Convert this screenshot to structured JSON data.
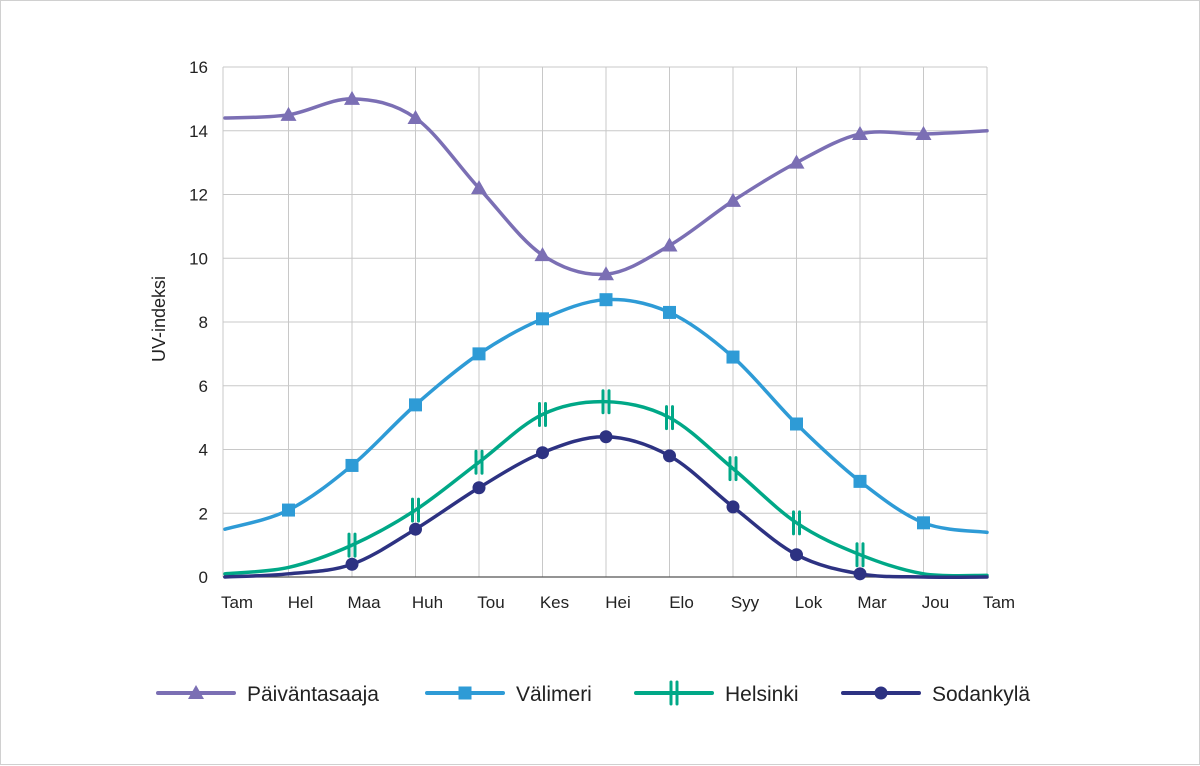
{
  "chart_data": {
    "type": "line",
    "title": "",
    "xlabel": "",
    "ylabel": "UV-indeksi",
    "categories": [
      "Tam",
      "Hel",
      "Maa",
      "Huh",
      "Tou",
      "Kes",
      "Hei",
      "Elo",
      "Syy",
      "Lok",
      "Mar",
      "Jou",
      "Tam"
    ],
    "ylim": [
      0,
      16
    ],
    "yticks": [
      0,
      2,
      4,
      6,
      8,
      10,
      12,
      14,
      16
    ],
    "grid": true,
    "legend_position": "bottom",
    "series": [
      {
        "name": "Päiväntasaaja",
        "color": "#7b6fb4",
        "marker": "triangle",
        "marker_indices": [
          1,
          2,
          3,
          4,
          5,
          6,
          7,
          8,
          9,
          10,
          11
        ],
        "values": [
          14.4,
          14.5,
          15.0,
          14.4,
          12.2,
          10.1,
          9.5,
          10.4,
          11.8,
          13.0,
          13.9,
          13.9,
          14.0
        ]
      },
      {
        "name": "Välimeri",
        "color": "#2e9bd6",
        "marker": "square",
        "marker_indices": [
          1,
          2,
          3,
          4,
          5,
          6,
          7,
          8,
          9,
          10,
          11
        ],
        "values": [
          1.5,
          2.1,
          3.5,
          5.4,
          7.0,
          8.1,
          8.7,
          8.3,
          6.9,
          4.8,
          3.0,
          1.7,
          1.4
        ]
      },
      {
        "name": "Helsinki",
        "color": "#00a887",
        "marker": "double-bar",
        "marker_indices": [
          2,
          3,
          4,
          5,
          6,
          7,
          8,
          9,
          10
        ],
        "values": [
          0.1,
          0.3,
          1.0,
          2.1,
          3.6,
          5.1,
          5.5,
          5.0,
          3.4,
          1.7,
          0.7,
          0.1,
          0.05
        ]
      },
      {
        "name": "Sodankylä",
        "color": "#2d3282",
        "marker": "circle",
        "marker_indices": [
          2,
          3,
          4,
          5,
          6,
          7,
          8,
          9,
          10
        ],
        "values": [
          0.0,
          0.1,
          0.4,
          1.5,
          2.8,
          3.9,
          4.4,
          3.8,
          2.2,
          0.7,
          0.1,
          0.0,
          0.0
        ]
      }
    ]
  }
}
